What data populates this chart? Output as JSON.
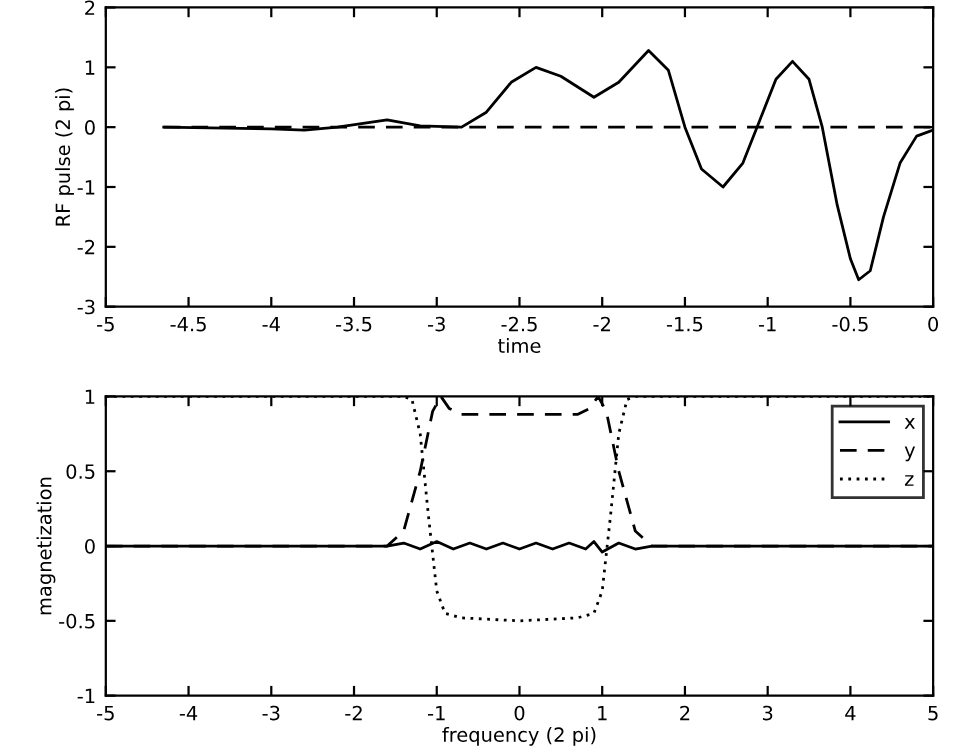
{
  "chart_data": [
    {
      "type": "line",
      "xlabel": "time",
      "ylabel": "RF pulse (2 pi)",
      "xlim": [
        -5,
        0
      ],
      "ylim": [
        -3,
        2
      ],
      "xticks": [
        -5,
        -4.5,
        -4,
        -3.5,
        -3,
        -2.5,
        -2,
        -1.5,
        -1,
        -0.5,
        0
      ],
      "yticks": [
        -3,
        -2,
        -1,
        0,
        1,
        2
      ],
      "grid": false,
      "series": [
        {
          "color": "#000000",
          "line_style": "solid",
          "x": [
            -4.65,
            -4.0,
            -3.8,
            -3.6,
            -3.3,
            -3.1,
            -2.85,
            -2.7,
            -2.55,
            -2.4,
            -2.25,
            -2.05,
            -1.9,
            -1.72,
            -1.6,
            -1.5,
            -1.4,
            -1.27,
            -1.15,
            -1.05,
            -0.95,
            -0.85,
            -0.75,
            -0.67,
            -0.58,
            -0.5,
            -0.45,
            -0.38,
            -0.3,
            -0.2,
            -0.1,
            0
          ],
          "values": [
            0,
            -0.03,
            -0.05,
            0.0,
            0.12,
            0.02,
            0.0,
            0.25,
            0.75,
            1.0,
            0.85,
            0.5,
            0.75,
            1.28,
            0.95,
            0.0,
            -0.7,
            -1.0,
            -0.6,
            0.1,
            0.8,
            1.1,
            0.8,
            0.0,
            -1.3,
            -2.2,
            -2.55,
            -2.4,
            -1.5,
            -0.6,
            -0.15,
            -0.05
          ]
        },
        {
          "color": "#000000",
          "line_style": "dashed",
          "x": [
            -4.65,
            0
          ],
          "values": [
            0,
            0
          ]
        }
      ]
    },
    {
      "type": "line",
      "xlabel": "frequency (2 pi)",
      "ylabel": "magnetization",
      "xlim": [
        -5,
        5
      ],
      "ylim": [
        -1,
        1
      ],
      "xticks": [
        -5,
        -4,
        -3,
        -2,
        -1,
        0,
        1,
        2,
        3,
        4,
        5
      ],
      "yticks": [
        -1,
        -0.5,
        0,
        0.5,
        1
      ],
      "grid": false,
      "legend": "top right",
      "series": [
        {
          "name": "x",
          "color": "#000000",
          "line_style": "solid",
          "x": [
            -5,
            -1.6,
            -1.4,
            -1.2,
            -1.0,
            -0.8,
            -0.6,
            -0.4,
            -0.2,
            0,
            0.2,
            0.4,
            0.6,
            0.8,
            0.9,
            1.0,
            1.2,
            1.4,
            1.6,
            5
          ],
          "values": [
            0,
            0,
            0.02,
            -0.02,
            0.03,
            -0.02,
            0.02,
            -0.02,
            0.02,
            -0.02,
            0.02,
            -0.02,
            0.02,
            -0.02,
            0.03,
            -0.04,
            0.02,
            -0.02,
            0,
            0
          ]
        },
        {
          "name": "y",
          "color": "#000000",
          "line_style": "dashed",
          "x": [
            -5,
            -1.6,
            -1.4,
            -1.2,
            -1.05,
            -0.95,
            -0.85,
            -0.7,
            0.7,
            0.85,
            0.95,
            1.05,
            1.2,
            1.4,
            1.6,
            5
          ],
          "values": [
            0,
            0,
            0.1,
            0.5,
            0.9,
            1.0,
            0.92,
            0.88,
            0.88,
            0.92,
            1.0,
            0.9,
            0.5,
            0.1,
            0,
            0
          ]
        },
        {
          "name": "z",
          "color": "#000000",
          "line_style": "dotted",
          "x": [
            -5,
            -1.4,
            -1.3,
            -1.2,
            -1.1,
            -1.0,
            -0.9,
            -0.7,
            0,
            0.7,
            0.9,
            1.0,
            1.1,
            1.2,
            1.3,
            1.4,
            5
          ],
          "values": [
            1,
            1,
            0.98,
            0.75,
            0.2,
            -0.3,
            -0.45,
            -0.48,
            -0.5,
            -0.48,
            -0.45,
            -0.3,
            0.2,
            0.75,
            0.98,
            1,
            1
          ]
        }
      ]
    }
  ]
}
